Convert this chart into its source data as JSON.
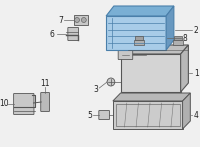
{
  "background_color": "#f0f0f0",
  "fig_width": 2.0,
  "fig_height": 1.47,
  "dpi": 100,
  "highlight_front": "#a8cce8",
  "highlight_top": "#7aafd4",
  "highlight_edge": "#4a7faa",
  "battery_front": "#d4d4d4",
  "battery_top": "#c0c0c0",
  "battery_right": "#b8b8b8",
  "battery_edge": "#555555",
  "tray_front": "#cccccc",
  "tray_top": "#b8b8b8",
  "tray_right": "#b0b0b0",
  "small_part": "#c8c8c8",
  "line_color": "#555555",
  "leader_color": "#666666",
  "label_color": "#222222",
  "label_fs": 5.5
}
